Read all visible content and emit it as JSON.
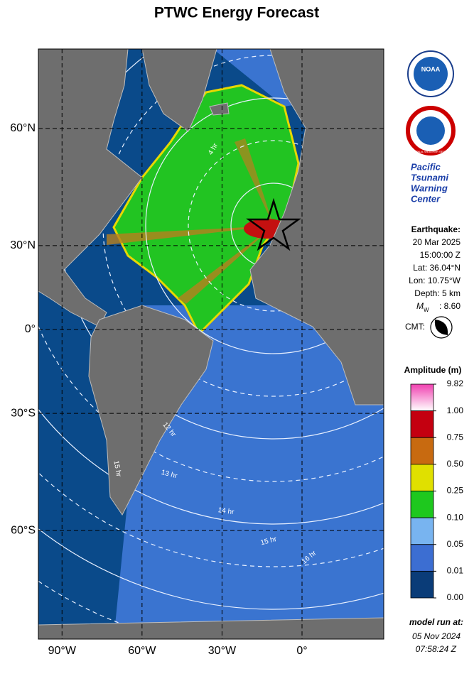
{
  "title": "PTWC Energy Forecast",
  "map": {
    "lon_ticks": [
      {
        "value": -90,
        "label": "90°W"
      },
      {
        "value": -60,
        "label": "60°W"
      },
      {
        "value": -30,
        "label": "30°W"
      },
      {
        "value": 0,
        "label": "0°"
      }
    ],
    "lat_ticks": [
      {
        "value": 60,
        "label": "60°N"
      },
      {
        "value": 30,
        "label": "30°N"
      },
      {
        "value": 0,
        "label": "0°"
      },
      {
        "value": -30,
        "label": "30°S"
      },
      {
        "value": -60,
        "label": "60°S"
      }
    ],
    "contour_labels": [
      "4 hr",
      "12 hr",
      "13 hr",
      "14 hr",
      "15 hr",
      "16 hr",
      "15 hr"
    ]
  },
  "logos": {
    "noaa": "NOAA",
    "nws": "NATIONAL WEATHER SERVICE",
    "center": [
      "Pacific",
      "Tsunami",
      "Warning",
      "Center"
    ]
  },
  "earthquake": {
    "heading": "Earthquake:",
    "date": "20 Mar 2025",
    "time": "15:00:00 Z",
    "lat": "Lat: 36.04°N",
    "lon": "Lon: 10.75°W",
    "depth": "Depth: 5 km",
    "magnitude_symbol": "M",
    "magnitude_subscript": "W",
    "magnitude": ": 8.60",
    "cmt": "CMT:"
  },
  "legend": {
    "title": "Amplitude (m)",
    "levels": [
      {
        "value": 9.82,
        "label": "9.82"
      },
      {
        "value": 1,
        "label": "1.00"
      },
      {
        "value": 0.75,
        "label": "0.75"
      },
      {
        "value": 0.5,
        "label": "0.50"
      },
      {
        "value": 0.25,
        "label": "0.25"
      },
      {
        "value": 0.1,
        "label": "0.10"
      },
      {
        "value": 0.05,
        "label": "0.05"
      },
      {
        "value": 0.01,
        "label": "0.01"
      },
      {
        "value": 0,
        "label": "0.00"
      }
    ],
    "colors": [
      "#f060c0",
      "#c40010",
      "#c86a10",
      "#e0e000",
      "#1ec81e",
      "#78b4f0",
      "#3c6ed2",
      "#0a3c78"
    ]
  },
  "model_run": {
    "heading": "model run at:",
    "date": "05 Nov 2024",
    "time": "07:58:24 Z"
  }
}
